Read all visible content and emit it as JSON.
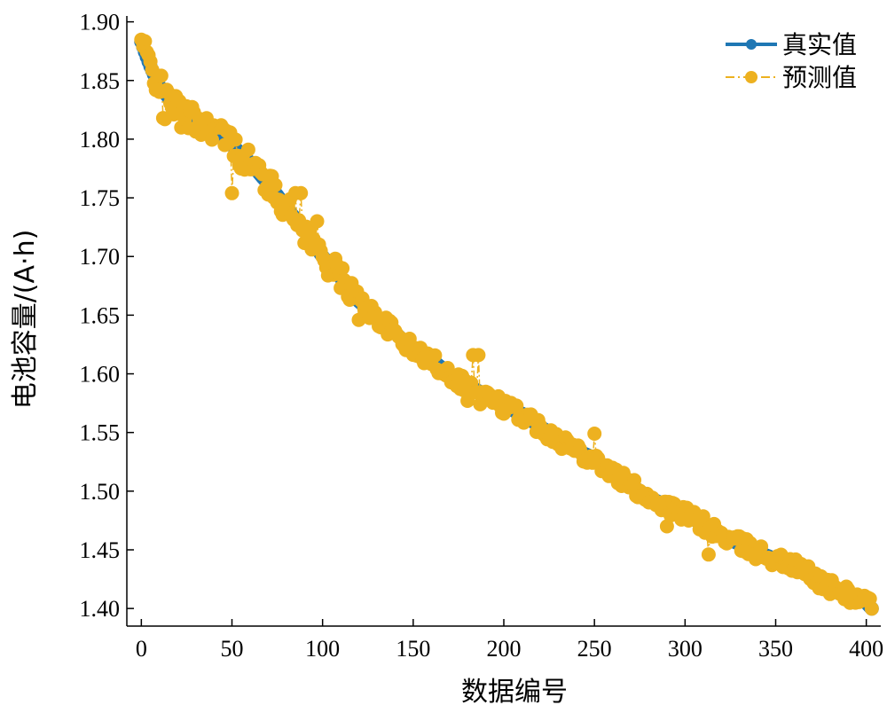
{
  "chart_data": {
    "type": "scatter",
    "xlabel": "数据编号",
    "ylabel": "电池容量/(A·h)",
    "xlim": [
      -8,
      408
    ],
    "ylim": [
      1.385,
      1.905
    ],
    "xticks": [
      0,
      50,
      100,
      150,
      200,
      250,
      300,
      350,
      400
    ],
    "xtick_labels": [
      "0",
      "50",
      "100",
      "150",
      "200",
      "250",
      "300",
      "350",
      "400"
    ],
    "yticks": [
      1.4,
      1.45,
      1.5,
      1.55,
      1.6,
      1.65,
      1.7,
      1.75,
      1.8,
      1.85,
      1.9
    ],
    "ytick_labels": [
      "1.40",
      "1.45",
      "1.50",
      "1.55",
      "1.60",
      "1.65",
      "1.70",
      "1.75",
      "1.80",
      "1.85",
      "1.90"
    ],
    "grid": false,
    "legend_position": "top-right",
    "series": [
      {
        "name": "真实值",
        "color": "#1f77b4",
        "style": "solid-line-with-markers",
        "anchors": [
          [
            0,
            1.883
          ],
          [
            3,
            1.87
          ],
          [
            5,
            1.862
          ],
          [
            10,
            1.845
          ],
          [
            20,
            1.826
          ],
          [
            30,
            1.815
          ],
          [
            40,
            1.81
          ],
          [
            50,
            1.795
          ],
          [
            60,
            1.78
          ],
          [
            70,
            1.762
          ],
          [
            80,
            1.742
          ],
          [
            90,
            1.722
          ],
          [
            100,
            1.7
          ],
          [
            110,
            1.682
          ],
          [
            120,
            1.662
          ],
          [
            130,
            1.648
          ],
          [
            140,
            1.635
          ],
          [
            150,
            1.62
          ],
          [
            160,
            1.612
          ],
          [
            170,
            1.6
          ],
          [
            180,
            1.59
          ],
          [
            190,
            1.582
          ],
          [
            200,
            1.572
          ],
          [
            210,
            1.566
          ],
          [
            220,
            1.555
          ],
          [
            230,
            1.545
          ],
          [
            240,
            1.535
          ],
          [
            250,
            1.528
          ],
          [
            260,
            1.515
          ],
          [
            270,
            1.505
          ],
          [
            280,
            1.495
          ],
          [
            290,
            1.487
          ],
          [
            300,
            1.48
          ],
          [
            310,
            1.472
          ],
          [
            320,
            1.462
          ],
          [
            330,
            1.455
          ],
          [
            340,
            1.448
          ],
          [
            350,
            1.442
          ],
          [
            360,
            1.436
          ],
          [
            370,
            1.428
          ],
          [
            380,
            1.418
          ],
          [
            390,
            1.412
          ],
          [
            400,
            1.405
          ],
          [
            403,
            1.4
          ]
        ]
      },
      {
        "name": "预测值",
        "color": "#edb120",
        "style": "dashdot-line-with-markers",
        "outliers": [
          [
            12,
            1.818
          ],
          [
            13,
            1.817
          ],
          [
            22,
            1.81
          ],
          [
            50,
            1.754
          ],
          [
            55,
            1.775
          ],
          [
            85,
            1.754
          ],
          [
            88,
            1.754
          ],
          [
            97,
            1.73
          ],
          [
            120,
            1.646
          ],
          [
            180,
            1.577
          ],
          [
            183,
            1.616
          ],
          [
            186,
            1.616
          ],
          [
            187,
            1.574
          ],
          [
            250,
            1.549
          ],
          [
            290,
            1.47
          ],
          [
            313,
            1.446
          ]
        ]
      }
    ]
  }
}
